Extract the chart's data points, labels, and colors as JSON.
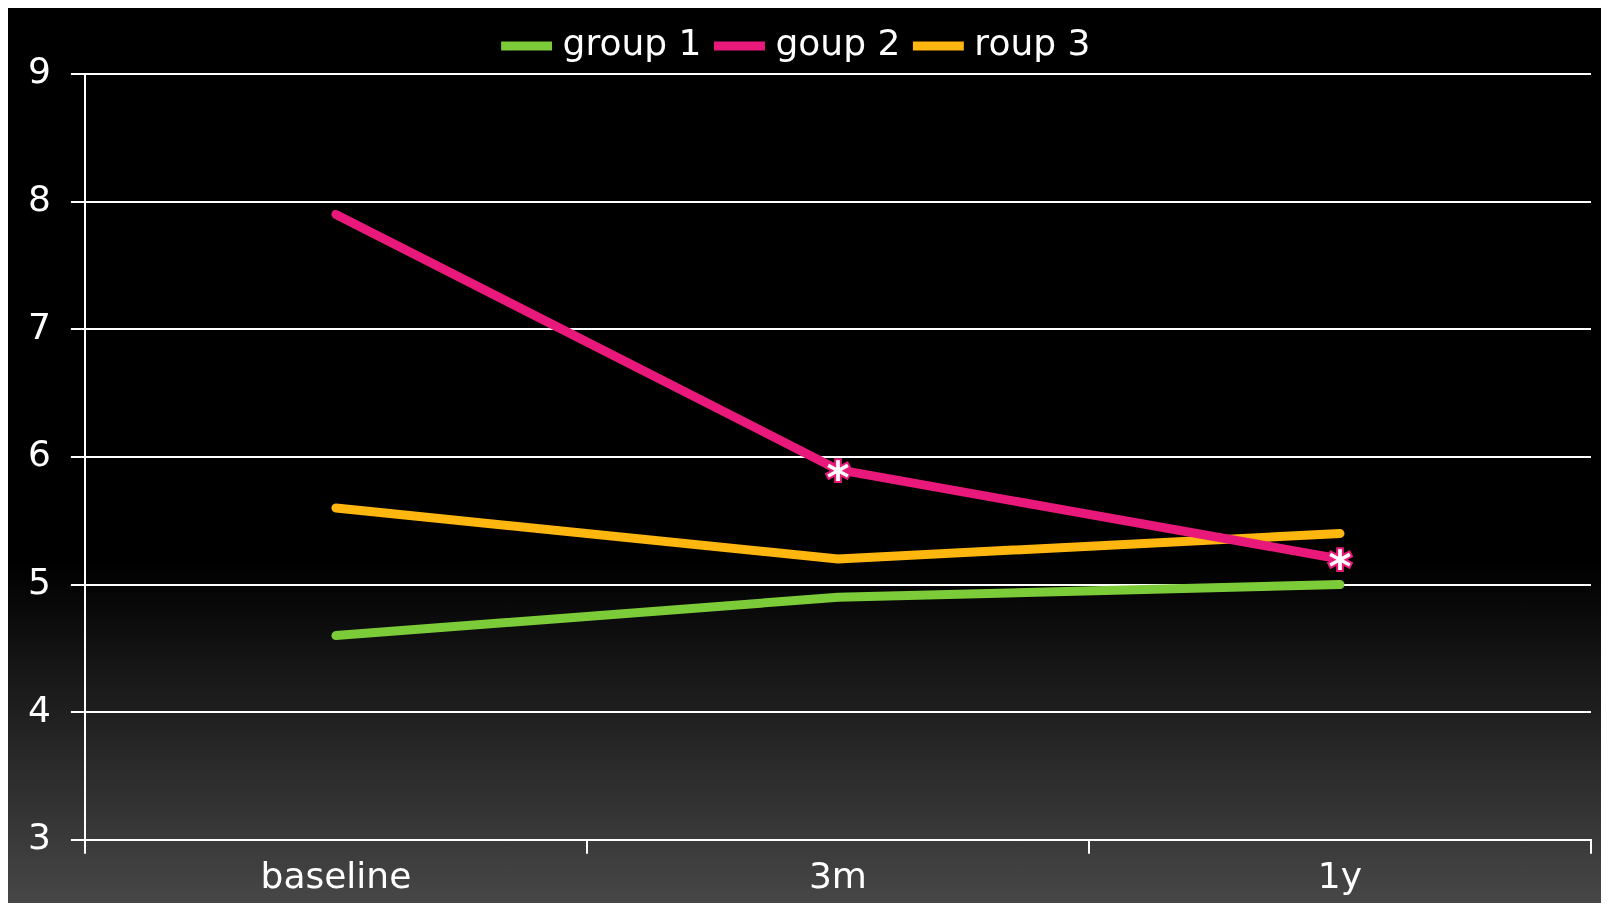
{
  "chart_data": {
    "type": "line",
    "categories": [
      "baseline",
      "3m",
      "1y"
    ],
    "series": [
      {
        "name": "group 1",
        "color": "#7ccc3a",
        "values": [
          4.6,
          4.9,
          5.0
        ]
      },
      {
        "name": "goup 2",
        "color": "#e8197a",
        "values": [
          7.9,
          5.9,
          5.2
        ]
      },
      {
        "name": "roup 3",
        "color": "#ffb60f",
        "values": [
          5.6,
          5.2,
          5.4
        ]
      }
    ],
    "ylim": [
      3,
      9
    ],
    "yticks": [
      3,
      4,
      5,
      6,
      7,
      8,
      9
    ],
    "grid": "y",
    "legend": "top",
    "marker": "none",
    "line_style": "solid",
    "annotations": [
      {
        "text": "*",
        "x": "3m",
        "y": 5.9
      },
      {
        "text": "*",
        "x": "1y",
        "y": 5.2
      }
    ]
  }
}
